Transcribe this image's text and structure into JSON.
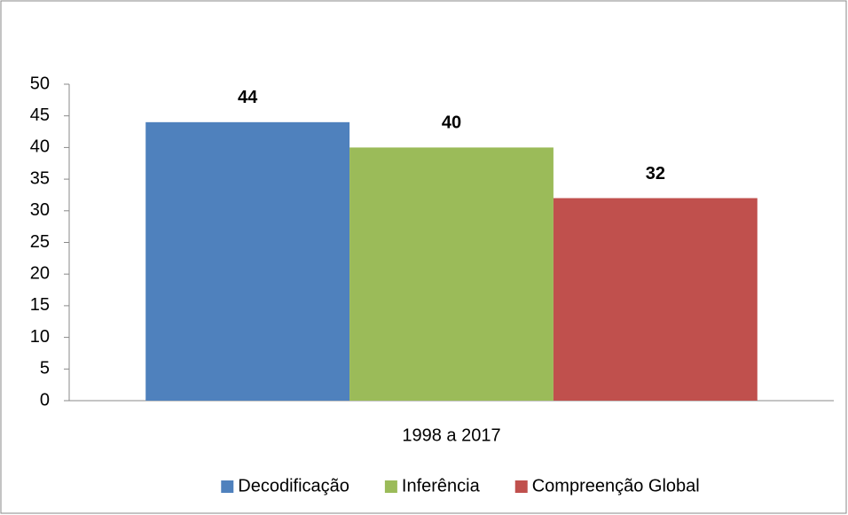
{
  "chart_data": {
    "type": "bar",
    "categories": [
      "1998 a 2017"
    ],
    "series": [
      {
        "name": "Decodificação",
        "color": "#4f81bd",
        "values": [
          44
        ]
      },
      {
        "name": "Inferência",
        "color": "#9bbb59",
        "values": [
          40
        ]
      },
      {
        "name": "Compreenção Global",
        "color": "#c0504d",
        "values": [
          32
        ]
      }
    ],
    "ylim": [
      0,
      50
    ],
    "yticks": [
      0,
      5,
      10,
      15,
      20,
      25,
      30,
      35,
      40,
      45,
      50
    ],
    "grid": false,
    "legend": "bottom",
    "data_labels": true
  }
}
